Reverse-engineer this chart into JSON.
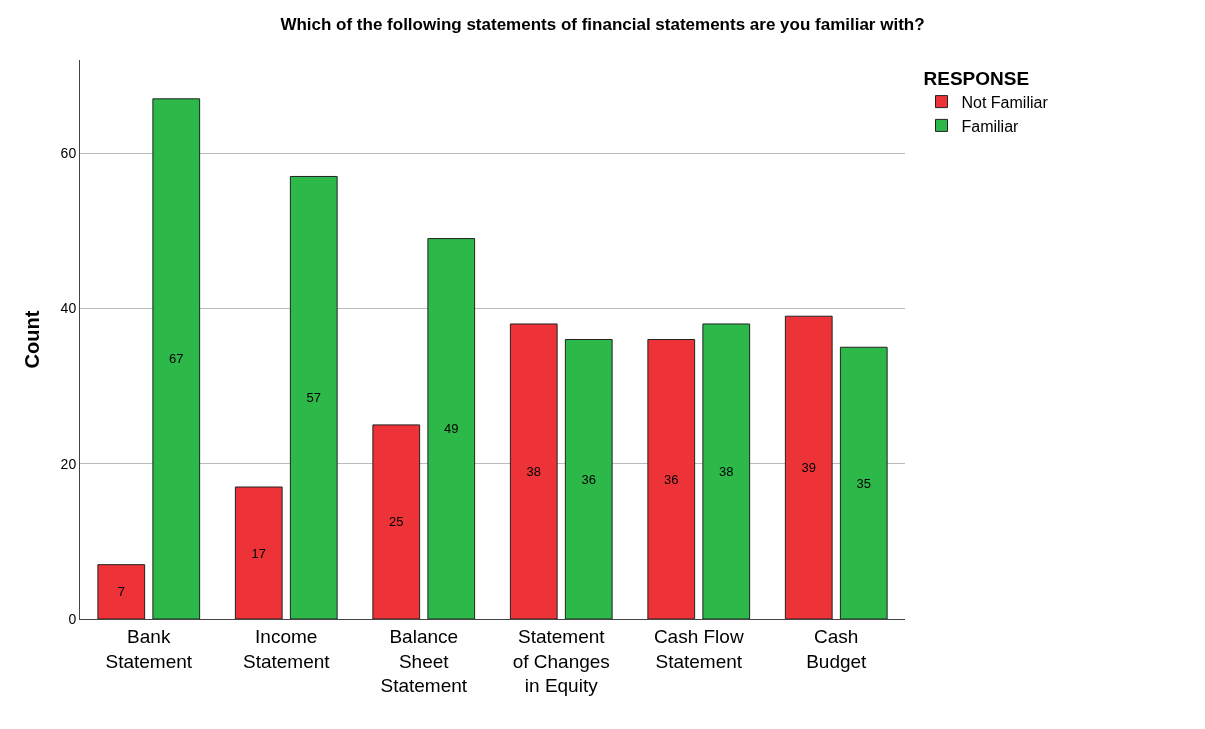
{
  "chart_data": {
    "type": "bar",
    "title": "Which of the following statements of financial statements are you familiar with?",
    "ylabel": "Count",
    "legend_title": "RESPONSE",
    "categories": [
      "Bank Statement",
      "Income Statement",
      "Balance Sheet Statement",
      "Statement of Changes in Equity",
      "Cash Flow Statement",
      "Cash Budget"
    ],
    "series": [
      {
        "name": "Not Familiar",
        "color": "#ee3338",
        "values": [
          7,
          17,
          25,
          38,
          36,
          39
        ]
      },
      {
        "name": "Familiar",
        "color": "#2db84a",
        "values": [
          67,
          57,
          49,
          36,
          38,
          35
        ]
      }
    ],
    "ylim": [
      0,
      72
    ],
    "yticks": [
      0,
      20,
      40,
      60
    ],
    "grid": "y",
    "legend": "top right",
    "data_labels": true
  }
}
